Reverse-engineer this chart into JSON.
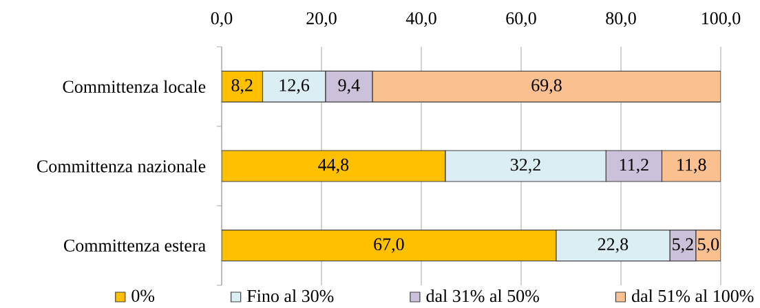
{
  "chart_data": {
    "type": "bar",
    "orientation": "horizontal",
    "stacked": true,
    "categories": [
      "Committenza locale",
      "Committenza nazionale",
      "Committenza estera"
    ],
    "series": [
      {
        "name": "0%",
        "color": "#ffc000",
        "values": [
          8.2,
          44.8,
          67.0
        ],
        "value_labels": [
          "8,2",
          "44,8",
          "67,0"
        ]
      },
      {
        "name": "Fino al 30%",
        "color": "#dbeef4",
        "values": [
          12.6,
          32.2,
          22.8
        ],
        "value_labels": [
          "12,6",
          "32,2",
          "22,8"
        ]
      },
      {
        "name": "dal 31% al 50%",
        "color": "#ccc1da",
        "values": [
          9.4,
          11.2,
          5.2
        ],
        "value_labels": [
          "9,4",
          "11,2",
          "5,2"
        ]
      },
      {
        "name": "dal 51% al 100%",
        "color": "#fac090",
        "values": [
          69.8,
          11.8,
          5.0
        ],
        "value_labels": [
          "69,8",
          "11,8",
          "5,0"
        ]
      }
    ],
    "xlim": [
      0,
      100
    ],
    "xticks": [
      {
        "value": 0,
        "label": "0,0"
      },
      {
        "value": 20,
        "label": "20,0"
      },
      {
        "value": 40,
        "label": "40,0"
      },
      {
        "value": 60,
        "label": "60,0"
      },
      {
        "value": 80,
        "label": "80,0"
      },
      {
        "value": 100,
        "label": "100,0"
      }
    ],
    "grid": "x",
    "legend": "bottom"
  }
}
